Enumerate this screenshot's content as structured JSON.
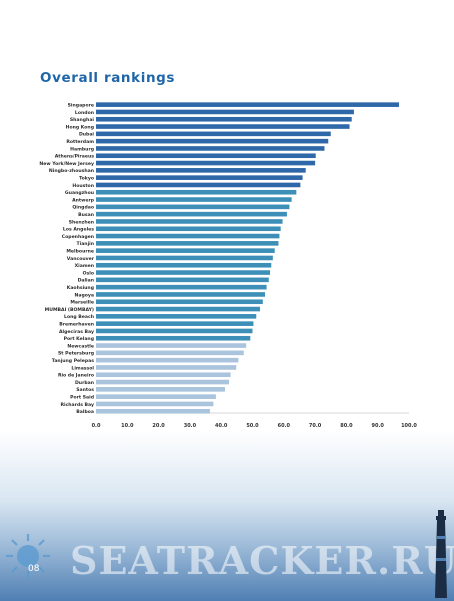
{
  "page": {
    "title": "Overall rankings",
    "page_number": "08",
    "watermark": "SEATRACKER.RU"
  },
  "colors": {
    "title": "#1f66a8",
    "bar_dark": "#2e68a8",
    "bar_mid": "#3d8fb8",
    "bar_light": "#a9c4dc"
  },
  "icons": {
    "sun": "sun-icon",
    "lighthouse": "lighthouse-icon"
  },
  "chart_data": {
    "type": "bar",
    "orientation": "horizontal",
    "title": "Overall rankings",
    "xlabel": "",
    "ylabel": "",
    "xlim": [
      0,
      100
    ],
    "xticks": [
      "0.0",
      "10.0",
      "20.0",
      "30.0",
      "40.0",
      "50.0",
      "60.0",
      "70.0",
      "80.0",
      "90.0",
      "100.0"
    ],
    "grid": false,
    "categories": [
      "Singapore",
      "London",
      "Shanghai",
      "Hong Kong",
      "Dubai",
      "Rotterdam",
      "Hamburg",
      "Athens/Piraeus",
      "New York/New Jersey",
      "Ningbo-zhoushan",
      "Tokyo",
      "Houston",
      "Guangzhou",
      "Antwerp",
      "Qingdao",
      "Busan",
      "Shenzhen",
      "Los Angeles",
      "Copenhagen",
      "Tianjin",
      "Melbourne",
      "Vancouver",
      "Xiamen",
      "Oslo",
      "Dalian",
      "Kaohsiung",
      "Nagoya",
      "Marseille",
      "MUMBAI (BOMBAY)",
      "Long Beach",
      "Bremerhaven",
      "Algeciras Bay",
      "Port Kelang",
      "Newcastle",
      "St Petersburg",
      "Tanjung Pelepas",
      "Limassol",
      "Rio de Janeiro",
      "Durban",
      "Santos",
      "Port Said",
      "Richards Bay",
      "Balboa"
    ],
    "values": [
      96.8,
      82.4,
      81.7,
      81.0,
      75.0,
      74.2,
      73.0,
      70.2,
      70.0,
      67.0,
      66.0,
      65.3,
      64.0,
      62.5,
      61.8,
      61.0,
      59.6,
      59.0,
      58.6,
      58.3,
      57.1,
      56.5,
      56.0,
      55.6,
      55.2,
      54.5,
      54.0,
      53.3,
      52.4,
      51.2,
      50.3,
      50.0,
      49.3,
      48.0,
      47.2,
      45.5,
      44.8,
      43.0,
      42.5,
      41.2,
      38.3,
      37.5,
      36.4
    ],
    "shades": [
      "dark",
      "dark",
      "dark",
      "dark",
      "dark",
      "dark",
      "dark",
      "dark",
      "dark",
      "dark",
      "dark",
      "dark",
      "mid",
      "mid",
      "mid",
      "mid",
      "mid",
      "mid",
      "mid",
      "mid",
      "mid",
      "mid",
      "mid",
      "mid",
      "mid",
      "mid",
      "mid",
      "mid",
      "mid",
      "mid",
      "mid",
      "mid",
      "mid",
      "light",
      "light",
      "light",
      "light",
      "light",
      "light",
      "light",
      "light",
      "light",
      "light"
    ]
  }
}
